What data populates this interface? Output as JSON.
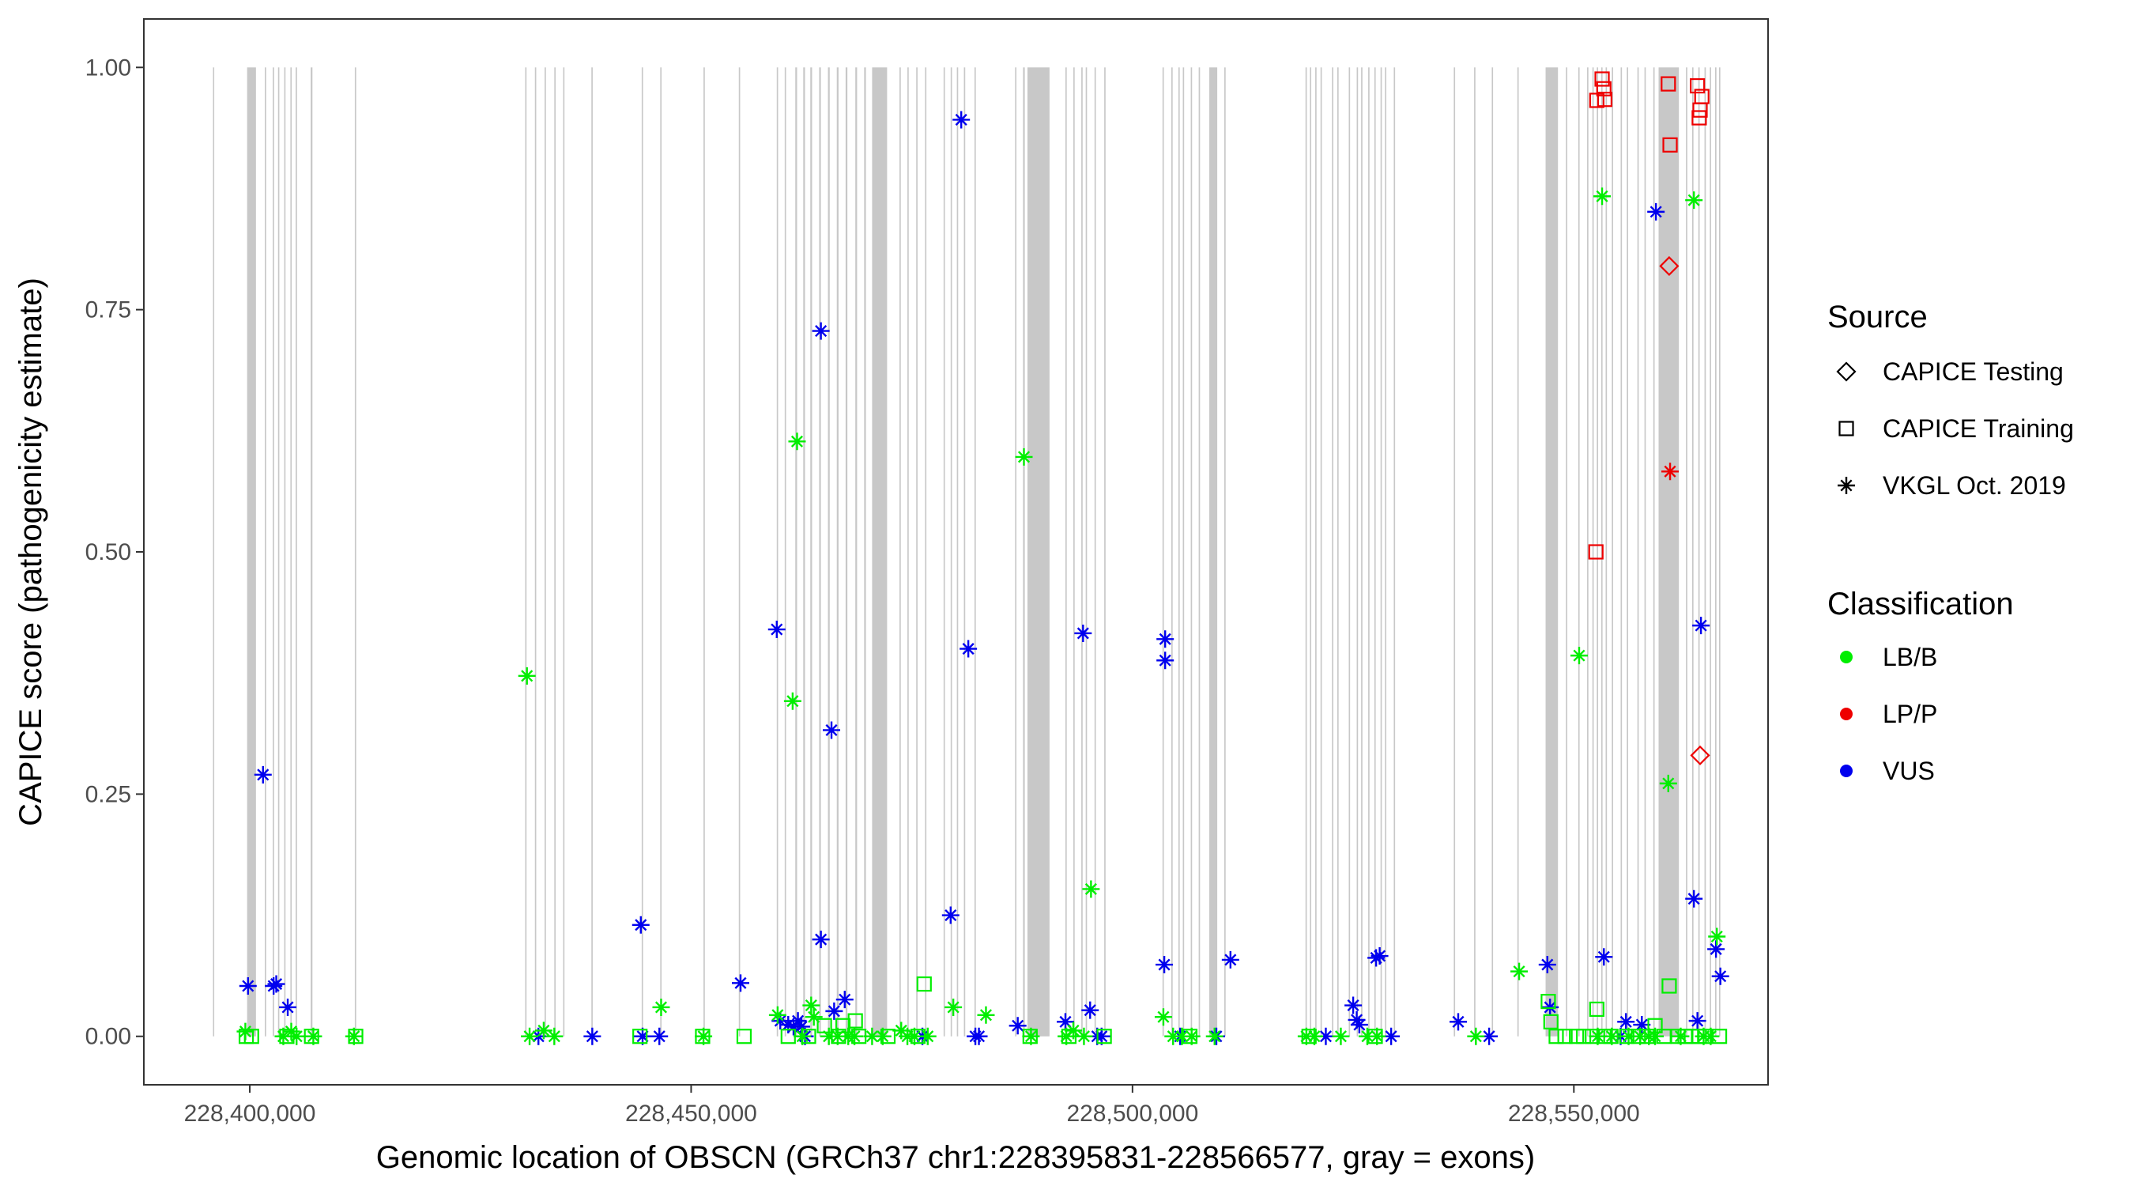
{
  "chart_data": {
    "type": "scatter",
    "xlabel": "Genomic location of OBSCN (GRCh37 chr1:228395831-228566577, gray = exons)",
    "ylabel": "CAPICE score (pathogenicity estimate)",
    "xlim": [
      228388000,
      228572000
    ],
    "ylim": [
      -0.05,
      1.05
    ],
    "x_ticks": [
      228400000,
      228450000,
      228500000,
      228550000
    ],
    "x_tick_labels": [
      "228,400,000",
      "228,450,000",
      "228,500,000",
      "228,550,000"
    ],
    "y_ticks": [
      0,
      0.25,
      0.5,
      0.75,
      1.0
    ],
    "y_tick_labels": [
      "0.00",
      "0.25",
      "0.50",
      "0.75",
      "1.00"
    ],
    "grid": false,
    "legend_position": "right",
    "exons": [
      [
        228395831,
        228395950
      ],
      [
        228399700,
        228400700
      ],
      [
        228401700,
        228401850
      ],
      [
        228402600,
        228402750
      ],
      [
        228403200,
        228403350
      ],
      [
        228403900,
        228404050
      ],
      [
        228404600,
        228404750
      ],
      [
        228405200,
        228405350
      ],
      [
        228406900,
        228407100
      ],
      [
        228411900,
        228412050
      ],
      [
        228431200,
        228431350
      ],
      [
        228432300,
        228432450
      ],
      [
        228433400,
        228433550
      ],
      [
        228434500,
        228434650
      ],
      [
        228435500,
        228435650
      ],
      [
        228438700,
        228438850
      ],
      [
        228444400,
        228444550
      ],
      [
        228446500,
        228446650
      ],
      [
        228451400,
        228451550
      ],
      [
        228455400,
        228455550
      ],
      [
        228459700,
        228459850
      ],
      [
        228460600,
        228460750
      ],
      [
        228461800,
        228462000
      ],
      [
        228462700,
        228462900
      ],
      [
        228463500,
        228463700
      ],
      [
        228464500,
        228464700
      ],
      [
        228465500,
        228465700
      ],
      [
        228466500,
        228466700
      ],
      [
        228467500,
        228467700
      ],
      [
        228468600,
        228468800
      ],
      [
        228469600,
        228469800
      ],
      [
        228470500,
        228472200
      ],
      [
        228473600,
        228473750
      ],
      [
        228474500,
        228474650
      ],
      [
        228475500,
        228475650
      ],
      [
        228476500,
        228476650
      ],
      [
        228478600,
        228478750
      ],
      [
        228479400,
        228479550
      ],
      [
        228480100,
        228480250
      ],
      [
        228480900,
        228481050
      ],
      [
        228482100,
        228482250
      ],
      [
        228486700,
        228486850
      ],
      [
        228487600,
        228487800
      ],
      [
        228488100,
        228490600
      ],
      [
        228492400,
        228492550
      ],
      [
        228493300,
        228493450
      ],
      [
        228494200,
        228494350
      ],
      [
        228494700,
        228494850
      ],
      [
        228495700,
        228495850
      ],
      [
        228496800,
        228496950
      ],
      [
        228503400,
        228503550
      ],
      [
        228504400,
        228504550
      ],
      [
        228505200,
        228505350
      ],
      [
        228505700,
        228505850
      ],
      [
        228506600,
        228506750
      ],
      [
        228507500,
        228507650
      ],
      [
        228508700,
        228509600
      ],
      [
        228510400,
        228510550
      ],
      [
        228519600,
        228519750
      ],
      [
        228520100,
        228520250
      ],
      [
        228520700,
        228520850
      ],
      [
        228521300,
        228521450
      ],
      [
        228522600,
        228522750
      ],
      [
        228523200,
        228523350
      ],
      [
        228524500,
        228524650
      ],
      [
        228525400,
        228525550
      ],
      [
        228525900,
        228526050
      ],
      [
        228526700,
        228526850
      ],
      [
        228527400,
        228527550
      ],
      [
        228528100,
        228528250
      ],
      [
        228528600,
        228528750
      ],
      [
        228529600,
        228529750
      ],
      [
        228536400,
        228536550
      ],
      [
        228538700,
        228538850
      ],
      [
        228540700,
        228540850
      ],
      [
        228543600,
        228543750
      ],
      [
        228546800,
        228548200
      ],
      [
        228549100,
        228549250
      ],
      [
        228550500,
        228550650
      ],
      [
        228551500,
        228551650
      ],
      [
        228552100,
        228552250
      ],
      [
        228552600,
        228552750
      ],
      [
        228553100,
        228553250
      ],
      [
        228553600,
        228553750
      ],
      [
        228554300,
        228554450
      ],
      [
        228555300,
        228555450
      ],
      [
        228556000,
        228556150
      ],
      [
        228557200,
        228557350
      ],
      [
        228558000,
        228558150
      ],
      [
        228559000,
        228559150
      ],
      [
        228559600,
        228561900
      ],
      [
        228562700,
        228562850
      ],
      [
        228563400,
        228563550
      ],
      [
        228564100,
        228564250
      ],
      [
        228564800,
        228564950
      ],
      [
        228565400,
        228565550
      ],
      [
        228566000,
        228566150
      ],
      [
        228566450,
        228566577
      ]
    ],
    "legend": {
      "source_title": "Source",
      "source_items": [
        {
          "label": "CAPICE Testing",
          "shape": "diamond"
        },
        {
          "label": "CAPICE Training",
          "shape": "square"
        },
        {
          "label": "VKGL Oct. 2019",
          "shape": "asterisk"
        }
      ],
      "class_title": "Classification",
      "class_items": [
        {
          "label": "LB/B",
          "color": "#00ee00"
        },
        {
          "label": "LP/P",
          "color": "#ee0000"
        },
        {
          "label": "VUS",
          "color": "#0000ee"
        }
      ]
    },
    "series": [
      {
        "classification": "VUS",
        "source": "VKGL Oct. 2019",
        "shape": "asterisk",
        "color": "#0000ee",
        "points": [
          [
            228399800,
            0.052
          ],
          [
            228401500,
            0.27
          ],
          [
            228402700,
            0.052
          ],
          [
            228403000,
            0.054
          ],
          [
            228404300,
            0.03
          ],
          [
            228432700,
            0.0
          ],
          [
            228438800,
            0.0
          ],
          [
            228444300,
            0.115
          ],
          [
            228444500,
            0.0
          ],
          [
            228446400,
            0.0
          ],
          [
            228455600,
            0.055
          ],
          [
            228459700,
            0.42
          ],
          [
            228460100,
            0.016
          ],
          [
            228461000,
            0.012
          ],
          [
            228461600,
            0.01
          ],
          [
            228462100,
            0.016
          ],
          [
            228462500,
            0.01
          ],
          [
            228462900,
            0.0
          ],
          [
            228464700,
            0.728
          ],
          [
            228464700,
            0.1
          ],
          [
            228465900,
            0.316
          ],
          [
            228466200,
            0.026
          ],
          [
            228467400,
            0.038
          ],
          [
            228476200,
            0.0
          ],
          [
            228479400,
            0.125
          ],
          [
            228480600,
            0.946
          ],
          [
            228481400,
            0.4
          ],
          [
            228482200,
            0.0
          ],
          [
            228482600,
            0.0
          ],
          [
            228487000,
            0.011
          ],
          [
            228492400,
            0.015
          ],
          [
            228494400,
            0.416
          ],
          [
            228495200,
            0.027
          ],
          [
            228496000,
            0.0
          ],
          [
            228496500,
            0.0
          ],
          [
            228503600,
            0.074
          ],
          [
            228503700,
            0.41
          ],
          [
            228503700,
            0.388
          ],
          [
            228505400,
            0.0
          ],
          [
            228509500,
            0.0
          ],
          [
            228511100,
            0.079
          ],
          [
            228521900,
            0.0
          ],
          [
            228525000,
            0.032
          ],
          [
            228525400,
            0.017
          ],
          [
            228525700,
            0.012
          ],
          [
            228527600,
            0.081
          ],
          [
            228528000,
            0.083
          ],
          [
            228529300,
            0.0
          ],
          [
            228536900,
            0.015
          ],
          [
            228540400,
            0.0
          ],
          [
            228547000,
            0.074
          ],
          [
            228547300,
            0.03
          ],
          [
            228553400,
            0.082
          ],
          [
            228555300,
            0.0
          ],
          [
            228555900,
            0.015
          ],
          [
            228557700,
            0.012
          ],
          [
            228559300,
            0.851
          ],
          [
            228563600,
            0.142
          ],
          [
            228564000,
            0.016
          ],
          [
            228564400,
            0.424
          ],
          [
            228566100,
            0.09
          ],
          [
            228566600,
            0.062
          ]
        ]
      },
      {
        "classification": "LB/B",
        "source": "VKGL Oct. 2019",
        "shape": "asterisk",
        "color": "#00ee00",
        "points": [
          [
            228399500,
            0.005
          ],
          [
            228403800,
            0.0
          ],
          [
            228404700,
            0.005
          ],
          [
            228405300,
            0.0
          ],
          [
            228407200,
            0.0
          ],
          [
            228411800,
            0.0
          ],
          [
            228431400,
            0.372
          ],
          [
            228431700,
            0.0
          ],
          [
            228433300,
            0.006
          ],
          [
            228434500,
            0.0
          ],
          [
            228446600,
            0.03
          ],
          [
            228451400,
            0.0
          ],
          [
            228459800,
            0.022
          ],
          [
            228461500,
            0.346
          ],
          [
            228462000,
            0.614
          ],
          [
            228462600,
            0.0
          ],
          [
            228463600,
            0.032
          ],
          [
            228463900,
            0.02
          ],
          [
            228465600,
            0.0
          ],
          [
            228466600,
            0.0
          ],
          [
            228467800,
            0.0
          ],
          [
            228468500,
            0.0
          ],
          [
            228470500,
            0.0
          ],
          [
            228471700,
            0.0
          ],
          [
            228473800,
            0.006
          ],
          [
            228474500,
            0.0
          ],
          [
            228475300,
            0.0
          ],
          [
            228476800,
            0.0
          ],
          [
            228479700,
            0.03
          ],
          [
            228483400,
            0.022
          ],
          [
            228487700,
            0.598
          ],
          [
            228488500,
            0.0
          ],
          [
            228492500,
            0.0
          ],
          [
            228493300,
            0.006
          ],
          [
            228494500,
            0.0
          ],
          [
            228495300,
            0.152
          ],
          [
            228503500,
            0.02
          ],
          [
            228504600,
            0.0
          ],
          [
            228505600,
            0.0
          ],
          [
            228506700,
            0.0
          ],
          [
            228509300,
            0.0
          ],
          [
            228519700,
            0.0
          ],
          [
            228520600,
            0.0
          ],
          [
            228523600,
            0.0
          ],
          [
            228526600,
            0.0
          ],
          [
            228527700,
            0.0
          ],
          [
            228538900,
            0.0
          ],
          [
            228543800,
            0.067
          ],
          [
            228550600,
            0.393
          ],
          [
            228552700,
            0.0
          ],
          [
            228553200,
            0.867
          ],
          [
            228554300,
            0.0
          ],
          [
            228556200,
            0.0
          ],
          [
            228557500,
            0.0
          ],
          [
            228558500,
            0.0
          ],
          [
            228559200,
            0.0
          ],
          [
            228560700,
            0.261
          ],
          [
            228562100,
            0.0
          ],
          [
            228563600,
            0.863
          ],
          [
            228564700,
            0.0
          ],
          [
            228565500,
            0.0
          ],
          [
            228566200,
            0.103
          ]
        ]
      },
      {
        "classification": "LP/P",
        "source": "VKGL Oct. 2019",
        "shape": "asterisk",
        "color": "#ee0000",
        "points": [
          [
            228560900,
            0.583
          ]
        ]
      },
      {
        "classification": "LB/B",
        "source": "CAPICE Training",
        "shape": "square",
        "color": "#00ee00",
        "points": [
          [
            228399600,
            0.0
          ],
          [
            228400200,
            0.0
          ],
          [
            228404200,
            0.0
          ],
          [
            228407000,
            0.0
          ],
          [
            228412000,
            0.0
          ],
          [
            228444200,
            0.0
          ],
          [
            228451300,
            0.0
          ],
          [
            228456000,
            0.0
          ],
          [
            228461000,
            0.0
          ],
          [
            228463300,
            0.0
          ],
          [
            228465100,
            0.011
          ],
          [
            228466700,
            0.0
          ],
          [
            228467200,
            0.011
          ],
          [
            228468600,
            0.016
          ],
          [
            228469000,
            0.0
          ],
          [
            228472300,
            0.0
          ],
          [
            228475700,
            0.0
          ],
          [
            228476400,
            0.054
          ],
          [
            228488400,
            0.0
          ],
          [
            228492800,
            0.0
          ],
          [
            228496800,
            0.0
          ],
          [
            228506500,
            0.0
          ],
          [
            228520000,
            0.0
          ],
          [
            228527500,
            0.0
          ],
          [
            228547100,
            0.036
          ],
          [
            228547400,
            0.015
          ],
          [
            228548000,
            0.0
          ],
          [
            228549000,
            0.0
          ],
          [
            228550300,
            0.0
          ],
          [
            228551100,
            0.0
          ],
          [
            228552100,
            0.0
          ],
          [
            228552600,
            0.028
          ],
          [
            228553400,
            0.0
          ],
          [
            228554200,
            0.0
          ],
          [
            228556000,
            0.0
          ],
          [
            228557300,
            0.0
          ],
          [
            228558300,
            0.0
          ],
          [
            228559200,
            0.011
          ],
          [
            228560200,
            0.0
          ],
          [
            228560800,
            0.052
          ],
          [
            228561800,
            0.0
          ],
          [
            228562600,
            0.0
          ],
          [
            228563300,
            0.0
          ],
          [
            228564200,
            0.0
          ],
          [
            228564900,
            0.0
          ],
          [
            228566500,
            0.0
          ]
        ]
      },
      {
        "classification": "LP/P",
        "source": "CAPICE Training",
        "shape": "square",
        "color": "#ee0000",
        "points": [
          [
            228552500,
            0.5
          ],
          [
            228552600,
            0.966
          ],
          [
            228553200,
            0.988
          ],
          [
            228553400,
            0.978
          ],
          [
            228553500,
            0.967
          ],
          [
            228560700,
            0.983
          ],
          [
            228560900,
            0.92
          ],
          [
            228564000,
            0.981
          ],
          [
            228564300,
            0.956
          ],
          [
            228564200,
            0.948
          ],
          [
            228564500,
            0.97
          ]
        ]
      },
      {
        "classification": "LP/P",
        "source": "CAPICE Testing",
        "shape": "diamond",
        "color": "#ee0000",
        "points": [
          [
            228560800,
            0.795
          ],
          [
            228564300,
            0.29
          ]
        ]
      }
    ]
  }
}
